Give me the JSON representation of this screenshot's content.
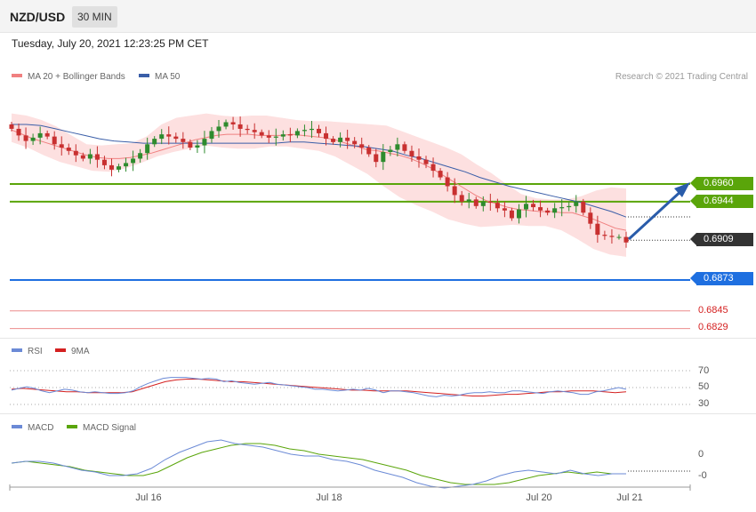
{
  "header": {
    "pair": "NZD/USD",
    "timeframe": "30 MIN"
  },
  "datetime": "Tuesday, July 20, 2021 12:23:25 PM CET",
  "legend": {
    "ma20": "MA 20 + Bollinger Bands",
    "ma50": "MA 50",
    "credit": "Research © 2021 Trading Central"
  },
  "rsi_legend": {
    "rsi": "RSI",
    "ma": "9MA"
  },
  "macd_legend": {
    "macd": "MACD",
    "signal": "MACD Signal"
  },
  "colors": {
    "resistance": "#5aa50a",
    "support": "#1e6fe0",
    "current": "#333333",
    "lower_levels": "#e04040",
    "ma20": "#f08080",
    "ma50": "#3a5ea8",
    "bands": "#fde0e0",
    "arrow": "#2a5caa",
    "rsi": "#6b8ad6",
    "rsi_ma": "#d42020",
    "macd": "#6b8ad6",
    "macd_signal": "#5aa50a"
  },
  "chart_data": [
    {
      "type": "candlestick",
      "title": "NZD/USD 30 MIN",
      "x_tick_labels": [
        "Jul 16",
        "Jul 18",
        "Jul 20",
        "Jul 21"
      ],
      "levels": [
        {
          "value": "0.6960",
          "kind": "resistance"
        },
        {
          "value": "0.6944",
          "kind": "resistance"
        },
        {
          "value": "0.6909",
          "kind": "current"
        },
        {
          "value": "0.6873",
          "kind": "support"
        },
        {
          "value": "0.6845",
          "kind": "lower"
        },
        {
          "value": "0.6829",
          "kind": "lower"
        }
      ],
      "close_series": [
        0.701,
        0.7004,
        0.6999,
        0.7002,
        0.7006,
        0.7003,
        0.6996,
        0.6993,
        0.699,
        0.6986,
        0.6983,
        0.6987,
        0.6982,
        0.6977,
        0.6973,
        0.6976,
        0.6979,
        0.6983,
        0.6988,
        0.6996,
        0.7001,
        0.7005,
        0.7003,
        0.7001,
        0.6998,
        0.6993,
        0.6995,
        0.7001,
        0.7008,
        0.7012,
        0.7016,
        0.7014,
        0.701,
        0.7009,
        0.7007,
        0.7004,
        0.7002,
        0.7003,
        0.7005,
        0.7004,
        0.7008,
        0.7009,
        0.701,
        0.7006,
        0.7001,
        0.6998,
        0.7002,
        0.6999,
        0.6996,
        0.6993,
        0.6987,
        0.698,
        0.6989,
        0.6991,
        0.6996,
        0.699,
        0.6985,
        0.6982,
        0.6978,
        0.6972,
        0.6966,
        0.6958,
        0.695,
        0.6944,
        0.6946,
        0.694,
        0.6944,
        0.6943,
        0.6938,
        0.6936,
        0.6929,
        0.6937,
        0.6942,
        0.6939,
        0.6936,
        0.6934,
        0.6938,
        0.6939,
        0.694,
        0.6944,
        0.6934,
        0.6924,
        0.6914,
        0.6913,
        0.6912,
        0.6912,
        0.6907
      ],
      "ma20_series": [
        0.7009,
        0.7005,
        0.7001,
        0.6998,
        0.6995,
        0.6992,
        0.6989,
        0.6986,
        0.6984,
        0.6983,
        0.6983,
        0.6984,
        0.6986,
        0.6988,
        0.6991,
        0.6994,
        0.6997,
        0.7,
        0.7002,
        0.7004,
        0.7005,
        0.7005,
        0.7005,
        0.7004,
        0.7004,
        0.7004,
        0.7005,
        0.7004,
        0.7003,
        0.7002,
        0.7,
        0.6997,
        0.6994,
        0.6991,
        0.699,
        0.6988,
        0.6986,
        0.6983,
        0.6979,
        0.6974,
        0.6968,
        0.6962,
        0.6956,
        0.695,
        0.6945,
        0.6942,
        0.6939,
        0.6937,
        0.6936,
        0.6935,
        0.6935,
        0.6934,
        0.6934,
        0.6931,
        0.6928,
        0.6924,
        0.692,
        0.6918
      ],
      "ma50_series": [
        0.7014,
        0.7014,
        0.7013,
        0.701,
        0.7007,
        0.7004,
        0.7001,
        0.6999,
        0.6998,
        0.6997,
        0.6997,
        0.6997,
        0.6997,
        0.6997,
        0.6997,
        0.6997,
        0.6997,
        0.6997,
        0.6997,
        0.6998,
        0.6998,
        0.6997,
        0.6996,
        0.6995,
        0.6994,
        0.6992,
        0.699,
        0.6986,
        0.6983,
        0.6979,
        0.6975,
        0.6971,
        0.6966,
        0.6962,
        0.6958,
        0.6955,
        0.6952,
        0.6949,
        0.6946,
        0.6943,
        0.6939,
        0.6935,
        0.693
      ],
      "bollinger_upper_series": [
        0.7024,
        0.7022,
        0.7018,
        0.7012,
        0.7004,
        0.6996,
        0.6995,
        0.6996,
        0.6997,
        0.7003,
        0.7014,
        0.702,
        0.7022,
        0.7024,
        0.7022,
        0.7021,
        0.7022,
        0.7022,
        0.702,
        0.7018,
        0.7017,
        0.7017,
        0.7016,
        0.7015,
        0.7014,
        0.7013,
        0.7008,
        0.7003,
        0.6998,
        0.6993,
        0.6987,
        0.6978,
        0.697,
        0.696,
        0.6951,
        0.6947,
        0.6946,
        0.6946,
        0.6949,
        0.6954,
        0.6957,
        0.6956
      ],
      "bollinger_lower_series": [
        0.6998,
        0.6993,
        0.6986,
        0.698,
        0.6976,
        0.6972,
        0.6971,
        0.6974,
        0.6979,
        0.6985,
        0.6989,
        0.6992,
        0.6995,
        0.6993,
        0.6992,
        0.6992,
        0.6994,
        0.6994,
        0.6992,
        0.699,
        0.6985,
        0.6977,
        0.6969,
        0.6958,
        0.6948,
        0.6941,
        0.6935,
        0.6928,
        0.6924,
        0.6921,
        0.6922,
        0.6923,
        0.6922,
        0.6922,
        0.6918,
        0.691,
        0.6901,
        0.6896,
        0.6894
      ]
    },
    {
      "type": "line",
      "title": "RSI",
      "y_tick_labels": [
        "70",
        "50",
        "30"
      ],
      "ylim": [
        20,
        80
      ],
      "series": [
        {
          "name": "RSI",
          "values": [
            47,
            49,
            51,
            49,
            46,
            44,
            46,
            48,
            47,
            45,
            44,
            45,
            44,
            43,
            43,
            44,
            46,
            51,
            55,
            58,
            61,
            62,
            62,
            62,
            61,
            60,
            61,
            60,
            57,
            58,
            56,
            55,
            54,
            55,
            56,
            54,
            53,
            52,
            51,
            50,
            48,
            48,
            47,
            46,
            47,
            48,
            47,
            49,
            47,
            44,
            46,
            46,
            45,
            44,
            42,
            40,
            39,
            41,
            40,
            41,
            43,
            44,
            44,
            45,
            44,
            44,
            46,
            46,
            45,
            44,
            43,
            45,
            46,
            45,
            44,
            42,
            42,
            45,
            46,
            48,
            50,
            48
          ]
        },
        {
          "name": "9MA",
          "values": [
            48,
            49,
            48,
            47,
            46,
            45,
            45,
            44,
            44,
            44,
            44,
            45,
            49,
            53,
            57,
            59,
            60,
            60,
            59,
            58,
            57,
            57,
            56,
            55,
            54,
            53,
            52,
            51,
            50,
            49,
            48,
            47,
            47,
            46,
            46,
            46,
            46,
            45,
            44,
            43,
            42,
            41,
            40,
            40,
            41,
            42,
            42,
            43,
            44,
            45,
            45,
            46,
            46,
            46,
            45,
            44,
            45
          ]
        }
      ]
    },
    {
      "type": "line",
      "title": "MACD",
      "y_tick_labels": [
        "0",
        "-0"
      ],
      "ylim": [
        -0.0016,
        0.0018
      ],
      "series": [
        {
          "name": "MACD",
          "values": [
            0.0001,
            0.0002,
            0.0002,
            0.0001,
            -0.0001,
            -0.0003,
            -0.0004,
            -0.0006,
            -0.0006,
            -0.0005,
            -0.0002,
            0.0003,
            0.0007,
            0.001,
            0.0013,
            0.0014,
            0.0012,
            0.0011,
            0.001,
            0.0008,
            0.0006,
            0.0005,
            0.0005,
            0.0003,
            0.0002,
            0.0,
            -0.0003,
            -0.0005,
            -0.0007,
            -0.001,
            -0.0012,
            -0.0013,
            -0.0012,
            -0.0011,
            -0.0009,
            -0.0006,
            -0.0004,
            -0.0003,
            -0.0004,
            -0.0005,
            -0.0003,
            -0.0005,
            -0.0006,
            -0.0005,
            -0.0005
          ]
        },
        {
          "name": "MACD Signal",
          "values": [
            0.0001,
            0.0002,
            0.0001,
            0.0,
            -0.0001,
            -0.0003,
            -0.0004,
            -0.0005,
            -0.0006,
            -0.0006,
            -0.0004,
            0.0,
            0.0004,
            0.0007,
            0.0009,
            0.0011,
            0.0012,
            0.0012,
            0.0011,
            0.0009,
            0.0008,
            0.0006,
            0.0005,
            0.0004,
            0.0003,
            0.0001,
            -0.0001,
            -0.0003,
            -0.0006,
            -0.0008,
            -0.001,
            -0.0011,
            -0.0011,
            -0.0011,
            -0.001,
            -0.0008,
            -0.0006,
            -0.0005,
            -0.0004,
            -0.0005,
            -0.0004,
            -0.0005,
            -0.0005
          ]
        }
      ]
    }
  ]
}
